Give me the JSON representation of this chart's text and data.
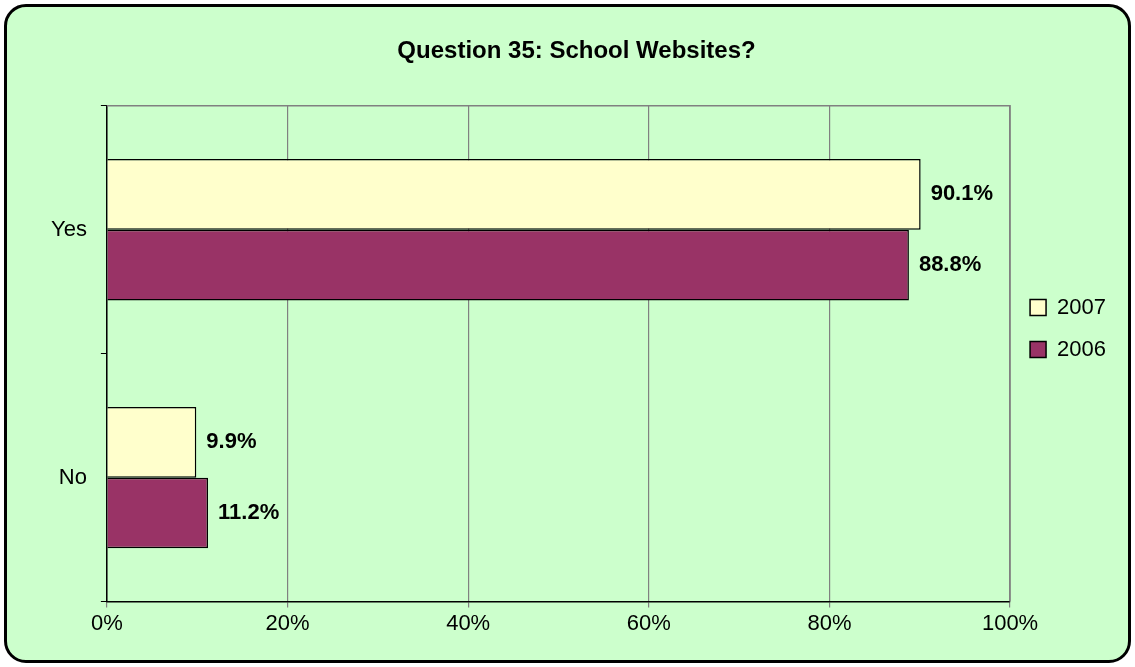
{
  "chart_data": {
    "type": "bar",
    "orientation": "horizontal",
    "title": "Question 35: School Websites?",
    "categories": [
      "Yes",
      "No"
    ],
    "series": [
      {
        "name": "2007",
        "color": "#ffffcc",
        "values": [
          90.1,
          9.9
        ],
        "value_labels": [
          "90.1%",
          "9.9%"
        ]
      },
      {
        "name": "2006",
        "color": "#993366",
        "values": [
          88.8,
          11.2
        ],
        "value_labels": [
          "88.8%",
          "11.2%"
        ]
      }
    ],
    "xlim": [
      0,
      100
    ],
    "xticks": [
      {
        "value": 0,
        "label": "0%"
      },
      {
        "value": 20,
        "label": "20%"
      },
      {
        "value": 40,
        "label": "40%"
      },
      {
        "value": 60,
        "label": "60%"
      },
      {
        "value": 80,
        "label": "80%"
      },
      {
        "value": 100,
        "label": "100%"
      }
    ],
    "grid": "x",
    "legend": "right"
  }
}
